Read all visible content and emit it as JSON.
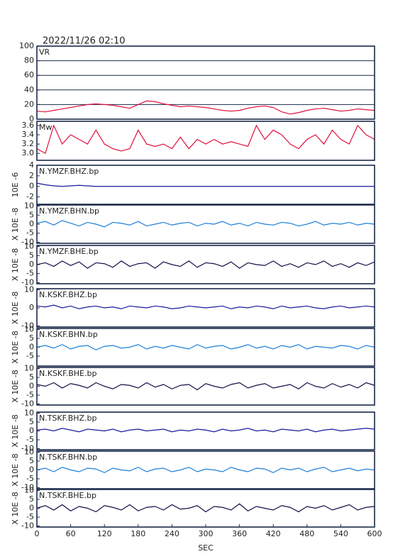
{
  "chart_data": [
    {
      "type": "line",
      "title": "2022/11/26 02:10",
      "xlim": [
        0,
        600
      ],
      "ylim": [
        0,
        100
      ],
      "yticks": [
        0,
        20,
        40,
        60,
        80,
        100
      ],
      "grid": true,
      "x": [
        0,
        15,
        30,
        45,
        60,
        75,
        90,
        105,
        120,
        135,
        150,
        165,
        180,
        195,
        210,
        225,
        240,
        255,
        270,
        285,
        300,
        315,
        330,
        345,
        360,
        375,
        390,
        405,
        420,
        435,
        450,
        465,
        480,
        495,
        510,
        525,
        540,
        555,
        570,
        585,
        600
      ],
      "series": [
        {
          "name": "VR",
          "color": "#e0103c",
          "values": [
            11,
            10,
            12,
            14,
            16,
            18,
            20,
            21,
            20,
            19,
            17,
            15,
            20,
            25,
            24,
            21,
            19,
            17,
            18,
            17,
            16,
            14,
            12,
            11,
            12,
            15,
            17,
            18,
            16,
            10,
            7,
            9,
            12,
            14,
            15,
            13,
            11,
            12,
            14,
            13,
            12
          ]
        }
      ]
    },
    {
      "type": "line",
      "xlim": [
        0,
        600
      ],
      "ylim": [
        2.85,
        3.69
      ],
      "yticks": [
        {
          "value": 3,
          "label": "3.0"
        },
        3.2,
        3.4,
        3.6
      ],
      "grid": false,
      "x": [
        0,
        15,
        30,
        45,
        60,
        75,
        90,
        105,
        120,
        135,
        150,
        165,
        180,
        195,
        210,
        225,
        240,
        255,
        270,
        285,
        300,
        315,
        330,
        345,
        360,
        375,
        390,
        405,
        420,
        435,
        450,
        465,
        480,
        495,
        510,
        525,
        540,
        555,
        570,
        585,
        600
      ],
      "series": [
        {
          "name": "Mw",
          "color": "#e0103c",
          "values": [
            3.1,
            3.0,
            3.6,
            3.2,
            3.4,
            3.3,
            3.2,
            3.5,
            3.2,
            3.1,
            3.05,
            3.1,
            3.5,
            3.2,
            3.15,
            3.2,
            3.1,
            3.35,
            3.1,
            3.3,
            3.2,
            3.3,
            3.2,
            3.25,
            3.2,
            3.15,
            3.6,
            3.3,
            3.5,
            3.4,
            3.2,
            3.1,
            3.3,
            3.4,
            3.2,
            3.5,
            3.3,
            3.2,
            3.6,
            3.4,
            3.3
          ]
        }
      ]
    },
    {
      "type": "line",
      "xlim": [
        0,
        600
      ],
      "ylim": [
        -3.4,
        4
      ],
      "yticks": [
        -2,
        0,
        2,
        4
      ],
      "ylabel": "10E -6",
      "x": [
        0,
        15,
        30,
        45,
        60,
        75,
        90,
        105,
        120,
        135,
        150,
        165,
        180,
        195,
        210,
        225,
        240,
        255,
        270,
        285,
        300,
        315,
        330,
        345,
        360,
        375,
        390,
        405,
        420,
        435,
        450,
        465,
        480,
        495,
        510,
        525,
        540,
        555,
        570,
        585,
        600
      ],
      "series": [
        {
          "name": "N.YMZF.BHZ.bp",
          "color": "#1a1aa0",
          "values": [
            0.6,
            0.3,
            0.1,
            0,
            0.1,
            0.2,
            0.1,
            0,
            0,
            0,
            0,
            0,
            0,
            0,
            0,
            0,
            0,
            0,
            0,
            0,
            0,
            0,
            0,
            0,
            0,
            0,
            0,
            0,
            0,
            0,
            0,
            0,
            0,
            0,
            0,
            0,
            0,
            0,
            0,
            0,
            0
          ]
        }
      ]
    },
    {
      "type": "line",
      "xlim": [
        0,
        600
      ],
      "ylim": [
        -10.6,
        10.6
      ],
      "yticks": [
        -10,
        -5,
        0,
        5,
        10
      ],
      "ylabel": "X 10E -8",
      "x": [
        0,
        15,
        30,
        45,
        60,
        75,
        90,
        105,
        120,
        135,
        150,
        165,
        180,
        195,
        210,
        225,
        240,
        255,
        270,
        285,
        300,
        315,
        330,
        345,
        360,
        375,
        390,
        405,
        420,
        435,
        450,
        465,
        480,
        495,
        510,
        525,
        540,
        555,
        570,
        585,
        600
      ],
      "series": [
        {
          "name": "N.YMZF.BHN.bp",
          "color": "#1e7ed8",
          "values": [
            0.5,
            1.5,
            -0.5,
            2,
            0.5,
            -1,
            1,
            0,
            -1.5,
            1,
            0.5,
            -0.5,
            1.5,
            -1,
            0,
            1,
            -0.5,
            0.5,
            1,
            -1,
            0.5,
            0,
            1.5,
            -0.5,
            0.5,
            -1,
            1,
            0,
            -0.5,
            1,
            0.5,
            -1,
            0,
            1.5,
            -0.5,
            0.5,
            0,
            1,
            -0.5,
            0.5,
            0
          ]
        }
      ]
    },
    {
      "type": "line",
      "xlim": [
        0,
        600
      ],
      "ylim": [
        -10.6,
        10.6
      ],
      "yticks": [
        -10,
        -5,
        0,
        5,
        10
      ],
      "ylabel": "X 10E -8",
      "x": [
        0,
        15,
        30,
        45,
        60,
        75,
        90,
        105,
        120,
        135,
        150,
        165,
        180,
        195,
        210,
        225,
        240,
        255,
        270,
        285,
        300,
        315,
        330,
        345,
        360,
        375,
        390,
        405,
        420,
        435,
        450,
        465,
        480,
        495,
        510,
        525,
        540,
        555,
        570,
        585,
        600
      ],
      "series": [
        {
          "name": "N.YMZF.BHE.bp",
          "color": "#101048",
          "values": [
            0,
            1,
            -1,
            2,
            -0.5,
            1.5,
            -2,
            1,
            0.5,
            -1.5,
            2,
            -1,
            0.5,
            1,
            -2,
            1.5,
            0,
            -1,
            2,
            -1.5,
            1,
            0.5,
            -1,
            1.5,
            -2,
            1,
            0,
            -0.5,
            2,
            -1,
            0.5,
            -1.5,
            1,
            0,
            2,
            -1,
            0.5,
            -1.5,
            1,
            -0.5,
            1.5
          ]
        }
      ]
    },
    {
      "type": "line",
      "xlim": [
        0,
        600
      ],
      "ylim": [
        -10.6,
        10.6
      ],
      "yticks": [
        -10,
        0,
        10
      ],
      "ylabel": "X 10E -8",
      "x": [
        0,
        15,
        30,
        45,
        60,
        75,
        90,
        105,
        120,
        135,
        150,
        165,
        180,
        195,
        210,
        225,
        240,
        255,
        270,
        285,
        300,
        315,
        330,
        345,
        360,
        375,
        390,
        405,
        420,
        435,
        450,
        465,
        480,
        495,
        510,
        525,
        540,
        555,
        570,
        585,
        600
      ],
      "series": [
        {
          "name": "N.KSKF.BHZ.bp",
          "color": "#1a1aa0",
          "values": [
            1,
            0.5,
            1.5,
            0,
            1,
            -0.5,
            0.5,
            1,
            0,
            0.5,
            -0.5,
            1,
            0.5,
            0,
            1,
            0.5,
            -0.5,
            0,
            1,
            0.5,
            0,
            0.5,
            1,
            -0.5,
            0.5,
            0,
            1,
            0.5,
            -0.5,
            1,
            0,
            0.5,
            1,
            0,
            -0.5,
            0.5,
            1,
            0,
            0.5,
            1,
            0.5
          ]
        }
      ]
    },
    {
      "type": "line",
      "xlim": [
        0,
        600
      ],
      "ylim": [
        -10.6,
        10.6
      ],
      "yticks": [
        -5,
        0,
        5,
        10
      ],
      "ylabel": "X 10E -8",
      "x": [
        0,
        15,
        30,
        45,
        60,
        75,
        90,
        105,
        120,
        135,
        150,
        165,
        180,
        195,
        210,
        225,
        240,
        255,
        270,
        285,
        300,
        315,
        330,
        345,
        360,
        375,
        390,
        405,
        420,
        435,
        450,
        465,
        480,
        495,
        510,
        525,
        540,
        555,
        570,
        585,
        600
      ],
      "series": [
        {
          "name": "N.KSKF.BHN.bp",
          "color": "#1e7ed8",
          "values": [
            0,
            1,
            -0.5,
            1.5,
            -1,
            0.5,
            1,
            -1.5,
            0.5,
            1,
            -0.5,
            0,
            1.5,
            -1,
            0.5,
            -0.5,
            1,
            0,
            -1,
            1.5,
            -0.5,
            0.5,
            1,
            -1,
            0,
            1.5,
            -0.5,
            0.5,
            -1,
            1,
            0,
            1.5,
            -1,
            0.5,
            0,
            -0.5,
            1,
            0.5,
            -1,
            1,
            0
          ]
        }
      ]
    },
    {
      "type": "line",
      "xlim": [
        0,
        600
      ],
      "ylim": [
        -10.6,
        10.6
      ],
      "yticks": [
        -10,
        -5,
        0,
        5,
        10
      ],
      "ylabel": "X 10E -8",
      "x": [
        0,
        15,
        30,
        45,
        60,
        75,
        90,
        105,
        120,
        135,
        150,
        165,
        180,
        195,
        210,
        225,
        240,
        255,
        270,
        285,
        300,
        315,
        330,
        345,
        360,
        375,
        390,
        405,
        420,
        435,
        450,
        465,
        480,
        495,
        510,
        525,
        540,
        555,
        570,
        585,
        600
      ],
      "series": [
        {
          "name": "N.KSKF.BHE.bp",
          "color": "#101048",
          "values": [
            1,
            0,
            2,
            -1,
            1.5,
            0.5,
            -1,
            2,
            0,
            -1.5,
            1,
            0.5,
            -1,
            2,
            -0.5,
            1,
            -1.5,
            0.5,
            1,
            -2,
            1.5,
            0,
            -1,
            1,
            2,
            -1,
            0.5,
            1.5,
            -1,
            0,
            1,
            -1.5,
            2,
            0,
            -1,
            1.5,
            -0.5,
            1,
            -1,
            2,
            0.5
          ]
        }
      ]
    },
    {
      "type": "line",
      "xlim": [
        0,
        600
      ],
      "ylim": [
        -10.6,
        10.6
      ],
      "yticks": [
        -10,
        -5,
        0,
        5,
        10
      ],
      "ylabel": "X 10E -8",
      "x": [
        0,
        15,
        30,
        45,
        60,
        75,
        90,
        105,
        120,
        135,
        150,
        165,
        180,
        195,
        210,
        225,
        240,
        255,
        270,
        285,
        300,
        315,
        330,
        345,
        360,
        375,
        390,
        405,
        420,
        435,
        450,
        465,
        480,
        495,
        510,
        525,
        540,
        555,
        570,
        585,
        600
      ],
      "series": [
        {
          "name": "N.TSKF.BHZ.bp",
          "color": "#1a1aa0",
          "values": [
            0.5,
            1,
            0,
            1.5,
            0.5,
            -0.5,
            1,
            0.5,
            0,
            1,
            -0.5,
            0.5,
            1,
            0,
            0.5,
            1,
            -0.5,
            0.5,
            0,
            1,
            0.5,
            -0.5,
            1,
            0,
            0.5,
            1.5,
            0,
            0.5,
            -0.5,
            1,
            0.5,
            0,
            1,
            -0.5,
            0.5,
            1,
            0,
            0.5,
            1,
            1.5,
            1
          ]
        }
      ]
    },
    {
      "type": "line",
      "xlim": [
        0,
        600
      ],
      "ylim": [
        -10.6,
        10.6
      ],
      "yticks": [
        -10,
        -5,
        0,
        5,
        10
      ],
      "ylabel": "X 10E -8",
      "x": [
        0,
        15,
        30,
        45,
        60,
        75,
        90,
        105,
        120,
        135,
        150,
        165,
        180,
        195,
        210,
        225,
        240,
        255,
        270,
        285,
        300,
        315,
        330,
        345,
        360,
        375,
        390,
        405,
        420,
        435,
        450,
        465,
        480,
        495,
        510,
        525,
        540,
        555,
        570,
        585,
        600
      ],
      "series": [
        {
          "name": "N.TSKF.BHN.bp",
          "color": "#1e7ed8",
          "values": [
            0,
            1,
            -1,
            1.5,
            0,
            -1,
            1,
            0.5,
            -1.5,
            1,
            0,
            -0.5,
            1.5,
            -1,
            0.5,
            1,
            -1,
            0,
            1.5,
            -1,
            0.5,
            0,
            -1,
            1.5,
            0,
            -1,
            1,
            0.5,
            -1.5,
            1,
            0,
            1,
            -1,
            0.5,
            1.5,
            -1,
            0,
            1,
            -0.5,
            0.5,
            0
          ]
        }
      ]
    },
    {
      "type": "line",
      "xlim": [
        0,
        600
      ],
      "ylim": [
        -10.6,
        10.6
      ],
      "yticks": [
        -10,
        -5,
        0,
        5,
        10
      ],
      "ylabel": "X 10E -8",
      "x": [
        0,
        15,
        30,
        45,
        60,
        75,
        90,
        105,
        120,
        135,
        150,
        165,
        180,
        195,
        210,
        225,
        240,
        255,
        270,
        285,
        300,
        315,
        330,
        345,
        360,
        375,
        390,
        405,
        420,
        435,
        450,
        465,
        480,
        495,
        510,
        525,
        540,
        555,
        570,
        585,
        600
      ],
      "series": [
        {
          "name": "N.TSKF.BHE.bp",
          "color": "#101048",
          "values": [
            0,
            1.5,
            -1,
            2,
            -1.5,
            1,
            0,
            -2,
            1.5,
            0.5,
            -1,
            2,
            -1.5,
            0.5,
            1,
            -1,
            2,
            -0.5,
            0,
            1.5,
            -2,
            1,
            0.5,
            -1,
            2.5,
            -1.5,
            1,
            0,
            -1,
            1.5,
            0.5,
            -2,
            1,
            0,
            1.5,
            -1,
            0.5,
            2,
            -1,
            0.5,
            1
          ]
        }
      ],
      "xlabel": "SEC",
      "xticks": [
        0,
        60,
        120,
        180,
        240,
        300,
        360,
        420,
        480,
        540,
        600
      ]
    }
  ]
}
